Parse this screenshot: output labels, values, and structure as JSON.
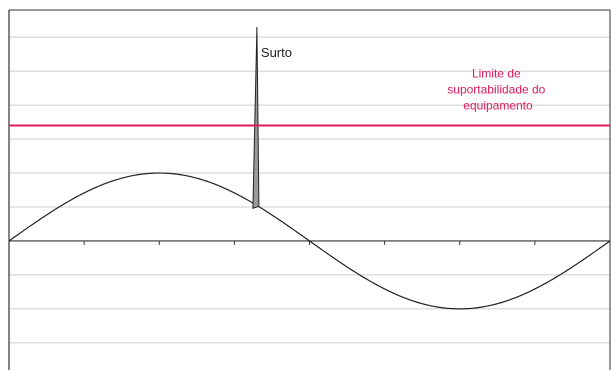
{
  "chart_data": {
    "type": "line",
    "title": "",
    "xlabel": "",
    "ylabel": "",
    "xlim": [
      0,
      8
    ],
    "ylim": [
      -1.9,
      3.4
    ],
    "grid": true,
    "x_ticks": [
      0,
      1,
      2,
      3,
      4,
      5,
      6,
      7,
      8
    ],
    "series": [
      {
        "style": "sine",
        "amplitude": 1.0,
        "period": 8,
        "x_range": [
          0,
          8
        ],
        "color": "#222222",
        "values_x": [
          0,
          1,
          2,
          3,
          4,
          5,
          6,
          7,
          8
        ],
        "values_y": [
          0,
          0.71,
          1.0,
          0.71,
          0,
          -0.71,
          -1.0,
          -0.71,
          0
        ]
      }
    ],
    "surge": {
      "label": "Surto",
      "x": 3.3,
      "base_y": 0.51,
      "peak_y": 3.15,
      "color": "#222222"
    },
    "limit": {
      "label_lines": [
        "Limite de",
        "suportabilidade do",
        "equipamento"
      ],
      "y": 1.7,
      "color": "#e0195a"
    }
  }
}
